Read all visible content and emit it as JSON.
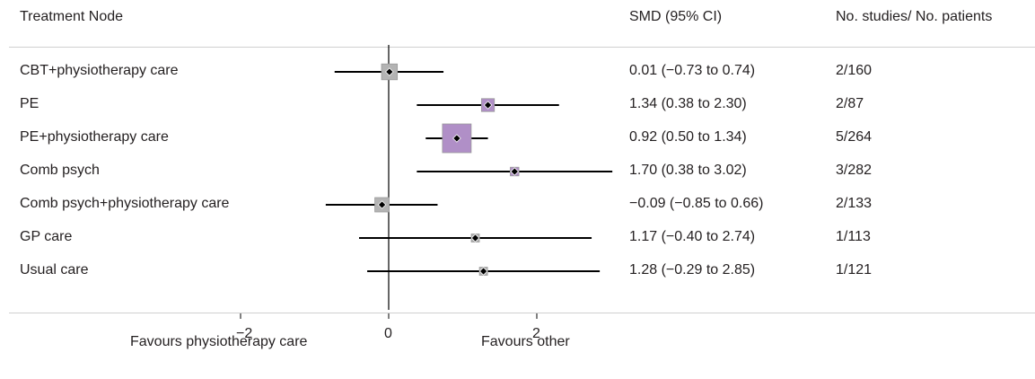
{
  "header": {
    "col_treatment": "Treatment Node",
    "col_smd": "SMD (95% CI)",
    "col_studies": "No. studies/ No. patients"
  },
  "chart_data": {
    "type": "forest",
    "xlim": [
      -3.03,
      3.03
    ],
    "xticks": [
      -2,
      0,
      2
    ],
    "xtick_labels": [
      "−2",
      "0",
      "2"
    ],
    "reference_line": 0,
    "footer_left": "Favours physiotherapy care",
    "footer_right": "Favours other",
    "colors": {
      "purple": "#b08fc7",
      "gray": "#b3b3b3",
      "line": "#000000"
    },
    "rows": [
      {
        "label": "CBT+physiotherapy care",
        "est": 0.01,
        "lo": -0.73,
        "hi": 0.74,
        "ci_text": "0.01 (−0.73 to 0.74)",
        "studies": "2/160",
        "box_color": "gray",
        "box_weight": 0.55
      },
      {
        "label": "PE",
        "est": 1.34,
        "lo": 0.38,
        "hi": 2.3,
        "ci_text": "1.34 (0.38 to 2.30)",
        "studies": "2/87",
        "box_color": "purple",
        "box_weight": 0.45
      },
      {
        "label": "PE+physiotherapy care",
        "est": 0.92,
        "lo": 0.5,
        "hi": 1.34,
        "ci_text": "0.92 (0.50 to 1.34)",
        "studies": "5/264",
        "box_color": "purple",
        "box_weight": 1.0
      },
      {
        "label": "Comb psych",
        "est": 1.7,
        "lo": 0.38,
        "hi": 3.02,
        "ci_text": "1.70 (0.38 to 3.02)",
        "studies": "3/282",
        "box_color": "purple",
        "box_weight": 0.3
      },
      {
        "label": "Comb psych+physiotherapy care",
        "est": -0.09,
        "lo": -0.85,
        "hi": 0.66,
        "ci_text": "−0.09 (−0.85 to 0.66)",
        "studies": "2/133",
        "box_color": "gray",
        "box_weight": 0.5
      },
      {
        "label": "GP care",
        "est": 1.17,
        "lo": -0.4,
        "hi": 2.74,
        "ci_text": "1.17 (−0.40 to 2.74)",
        "studies": "1/113",
        "box_color": "gray",
        "box_weight": 0.28
      },
      {
        "label": "Usual care",
        "est": 1.28,
        "lo": -0.29,
        "hi": 2.85,
        "ci_text": "1.28 (−0.29 to 2.85)",
        "studies": "1/121",
        "box_color": "gray",
        "box_weight": 0.28
      }
    ]
  }
}
